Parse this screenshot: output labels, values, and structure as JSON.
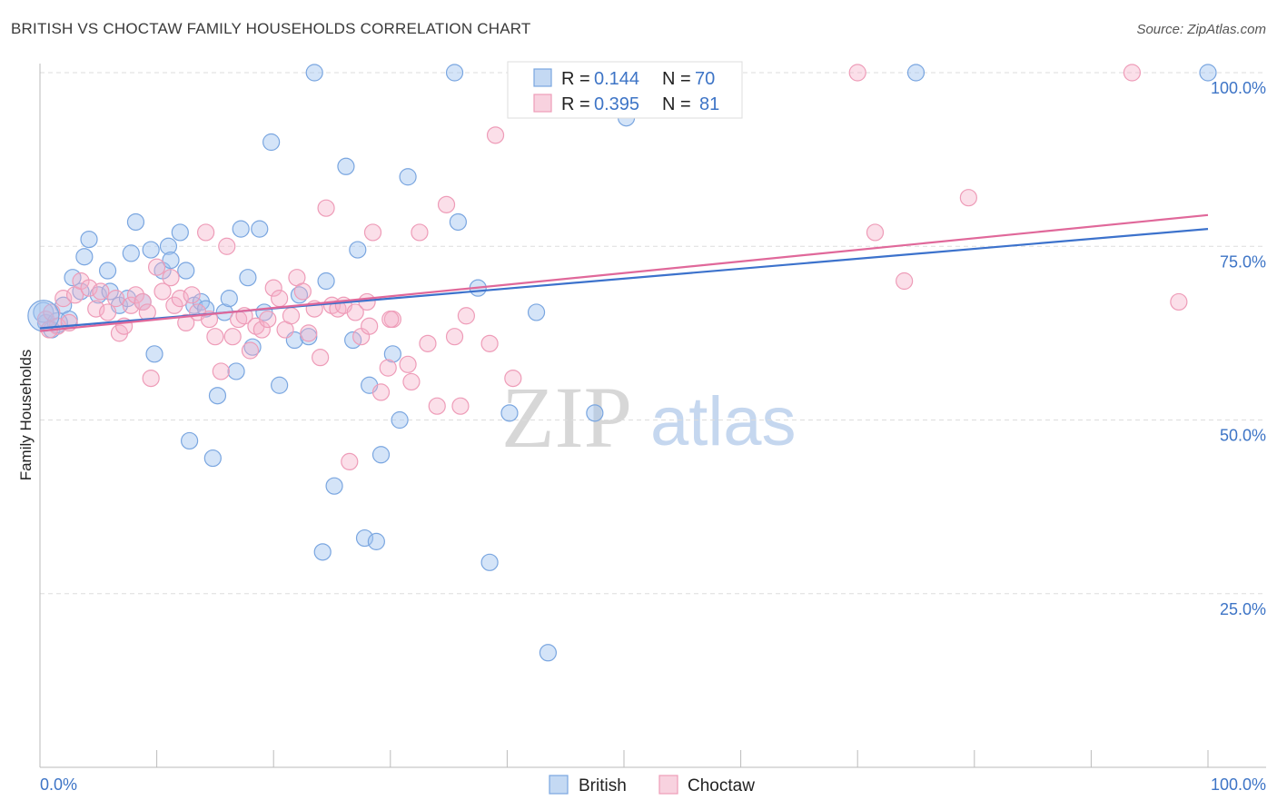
{
  "header": {
    "title": "BRITISH VS CHOCTAW FAMILY HOUSEHOLDS CORRELATION CHART",
    "source": "Source: ZipAtlas.com"
  },
  "watermark": {
    "zip": "ZIP",
    "atlas": "atlas"
  },
  "chart_data": {
    "type": "scatter",
    "title": "BRITISH VS CHOCTAW FAMILY HOUSEHOLDS CORRELATION CHART",
    "xlabel": "",
    "ylabel": "Family Households",
    "xlim": [
      0,
      100
    ],
    "ylim": [
      0,
      100
    ],
    "x_tick_labels": {
      "left": "0.0%",
      "right": "100.0%"
    },
    "y_ticks": [
      {
        "value": 25,
        "label": "25.0%"
      },
      {
        "value": 50,
        "label": "50.0%"
      },
      {
        "value": 75,
        "label": "75.0%"
      },
      {
        "value": 100,
        "label": "100.0%"
      }
    ],
    "legend": {
      "r_label": "R =",
      "n_label": "N =",
      "entries": [
        {
          "name": "British",
          "r": "0.144",
          "n": "70",
          "color": "#7aa6e0",
          "fill": "#c4d9f3"
        },
        {
          "name": "Choctaw",
          "r": "0.395",
          "n": "81",
          "color": "#ee9cb8",
          "fill": "#f8d2df"
        }
      ]
    },
    "series": [
      {
        "name": "British",
        "color": "#7aa6e0",
        "trend": {
          "x": [
            0,
            100
          ],
          "y": [
            63.2,
            77.5
          ],
          "color": "#3c72cc"
        },
        "points": [
          [
            0.5,
            64.0
          ],
          [
            1.0,
            63.0
          ],
          [
            2.0,
            66.5
          ],
          [
            2.5,
            64.5
          ],
          [
            2.8,
            70.5
          ],
          [
            3.5,
            68.5
          ],
          [
            3.8,
            73.5
          ],
          [
            4.2,
            76.0
          ],
          [
            5.0,
            68.0
          ],
          [
            5.8,
            71.5
          ],
          [
            6.0,
            68.5
          ],
          [
            6.8,
            66.5
          ],
          [
            7.5,
            67.5
          ],
          [
            7.8,
            74.0
          ],
          [
            8.2,
            78.5
          ],
          [
            8.8,
            67.0
          ],
          [
            9.5,
            74.5
          ],
          [
            9.8,
            59.5
          ],
          [
            10.5,
            71.5
          ],
          [
            11.0,
            75.0
          ],
          [
            11.2,
            73.0
          ],
          [
            12.0,
            77.0
          ],
          [
            12.5,
            71.5
          ],
          [
            12.8,
            47.0
          ],
          [
            13.2,
            66.5
          ],
          [
            13.8,
            67.0
          ],
          [
            14.2,
            66.0
          ],
          [
            14.8,
            44.5
          ],
          [
            15.2,
            53.5
          ],
          [
            15.8,
            65.5
          ],
          [
            16.2,
            67.5
          ],
          [
            16.8,
            57.0
          ],
          [
            17.2,
            77.5
          ],
          [
            17.8,
            70.5
          ],
          [
            18.2,
            60.5
          ],
          [
            18.8,
            77.5
          ],
          [
            19.2,
            65.5
          ],
          [
            19.8,
            90.0
          ],
          [
            20.5,
            55.0
          ],
          [
            21.8,
            61.5
          ],
          [
            22.2,
            68.0
          ],
          [
            23.0,
            62.0
          ],
          [
            23.5,
            100.0
          ],
          [
            24.2,
            31.0
          ],
          [
            24.5,
            70.0
          ],
          [
            25.2,
            40.5
          ],
          [
            26.2,
            86.5
          ],
          [
            26.8,
            61.5
          ],
          [
            27.2,
            74.5
          ],
          [
            27.8,
            33.0
          ],
          [
            28.2,
            55.0
          ],
          [
            28.8,
            32.5
          ],
          [
            29.2,
            45.0
          ],
          [
            30.2,
            59.5
          ],
          [
            30.8,
            50.0
          ],
          [
            31.5,
            85.0
          ],
          [
            35.5,
            100.0
          ],
          [
            35.8,
            78.5
          ],
          [
            37.5,
            69.0
          ],
          [
            38.5,
            29.5
          ],
          [
            40.2,
            51.0
          ],
          [
            42.5,
            65.5
          ],
          [
            43.5,
            16.5
          ],
          [
            47.5,
            51.0
          ],
          [
            49.5,
            100.0
          ],
          [
            50.2,
            93.5
          ],
          [
            75.0,
            100.0
          ],
          [
            100.0,
            100.0
          ],
          [
            0.3,
            65.5
          ],
          [
            1.5,
            64.0
          ]
        ]
      },
      {
        "name": "Choctaw",
        "color": "#ee9cb8",
        "trend": {
          "x": [
            0,
            100
          ],
          "y": [
            62.8,
            79.5
          ],
          "color": "#e0689a"
        },
        "points": [
          [
            0.5,
            64.5
          ],
          [
            1.0,
            65.5
          ],
          [
            1.5,
            63.5
          ],
          [
            2.0,
            67.5
          ],
          [
            2.5,
            64.0
          ],
          [
            3.0,
            68.0
          ],
          [
            3.5,
            70.0
          ],
          [
            4.2,
            69.0
          ],
          [
            4.8,
            66.0
          ],
          [
            5.2,
            68.5
          ],
          [
            5.8,
            65.5
          ],
          [
            6.5,
            67.5
          ],
          [
            6.8,
            62.5
          ],
          [
            7.2,
            63.5
          ],
          [
            7.8,
            66.5
          ],
          [
            8.2,
            68.0
          ],
          [
            8.8,
            67.0
          ],
          [
            9.2,
            65.5
          ],
          [
            9.5,
            56.0
          ],
          [
            10.0,
            72.0
          ],
          [
            10.5,
            68.5
          ],
          [
            11.2,
            70.5
          ],
          [
            11.5,
            66.5
          ],
          [
            12.0,
            67.5
          ],
          [
            12.5,
            64.0
          ],
          [
            13.0,
            68.0
          ],
          [
            13.5,
            65.5
          ],
          [
            14.2,
            77.0
          ],
          [
            14.5,
            64.5
          ],
          [
            15.0,
            62.0
          ],
          [
            15.5,
            57.0
          ],
          [
            16.0,
            75.0
          ],
          [
            16.5,
            62.0
          ],
          [
            17.0,
            64.5
          ],
          [
            17.5,
            65.0
          ],
          [
            18.0,
            60.0
          ],
          [
            18.5,
            63.5
          ],
          [
            19.0,
            63.0
          ],
          [
            19.5,
            64.5
          ],
          [
            20.0,
            69.0
          ],
          [
            20.5,
            67.5
          ],
          [
            21.0,
            63.0
          ],
          [
            21.5,
            65.0
          ],
          [
            22.0,
            70.5
          ],
          [
            22.5,
            68.5
          ],
          [
            23.0,
            62.5
          ],
          [
            23.5,
            66.0
          ],
          [
            24.0,
            59.0
          ],
          [
            24.5,
            80.5
          ],
          [
            25.0,
            66.5
          ],
          [
            25.5,
            66.0
          ],
          [
            26.0,
            66.5
          ],
          [
            26.5,
            44.0
          ],
          [
            27.0,
            65.5
          ],
          [
            27.5,
            62.0
          ],
          [
            28.0,
            67.0
          ],
          [
            28.5,
            77.0
          ],
          [
            29.2,
            54.0
          ],
          [
            29.8,
            57.5
          ],
          [
            30.2,
            64.5
          ],
          [
            31.5,
            58.0
          ],
          [
            31.8,
            55.5
          ],
          [
            32.5,
            77.0
          ],
          [
            33.2,
            61.0
          ],
          [
            34.0,
            52.0
          ],
          [
            34.8,
            81.0
          ],
          [
            35.5,
            62.0
          ],
          [
            36.0,
            52.0
          ],
          [
            36.5,
            65.0
          ],
          [
            38.5,
            61.0
          ],
          [
            39.0,
            91.0
          ],
          [
            40.5,
            56.0
          ],
          [
            70.0,
            100.0
          ],
          [
            71.5,
            77.0
          ],
          [
            74.0,
            70.0
          ],
          [
            79.5,
            82.0
          ],
          [
            93.5,
            100.0
          ],
          [
            97.5,
            67.0
          ],
          [
            30.0,
            64.5
          ],
          [
            28.2,
            63.5
          ],
          [
            0.8,
            63.0
          ]
        ]
      }
    ]
  }
}
